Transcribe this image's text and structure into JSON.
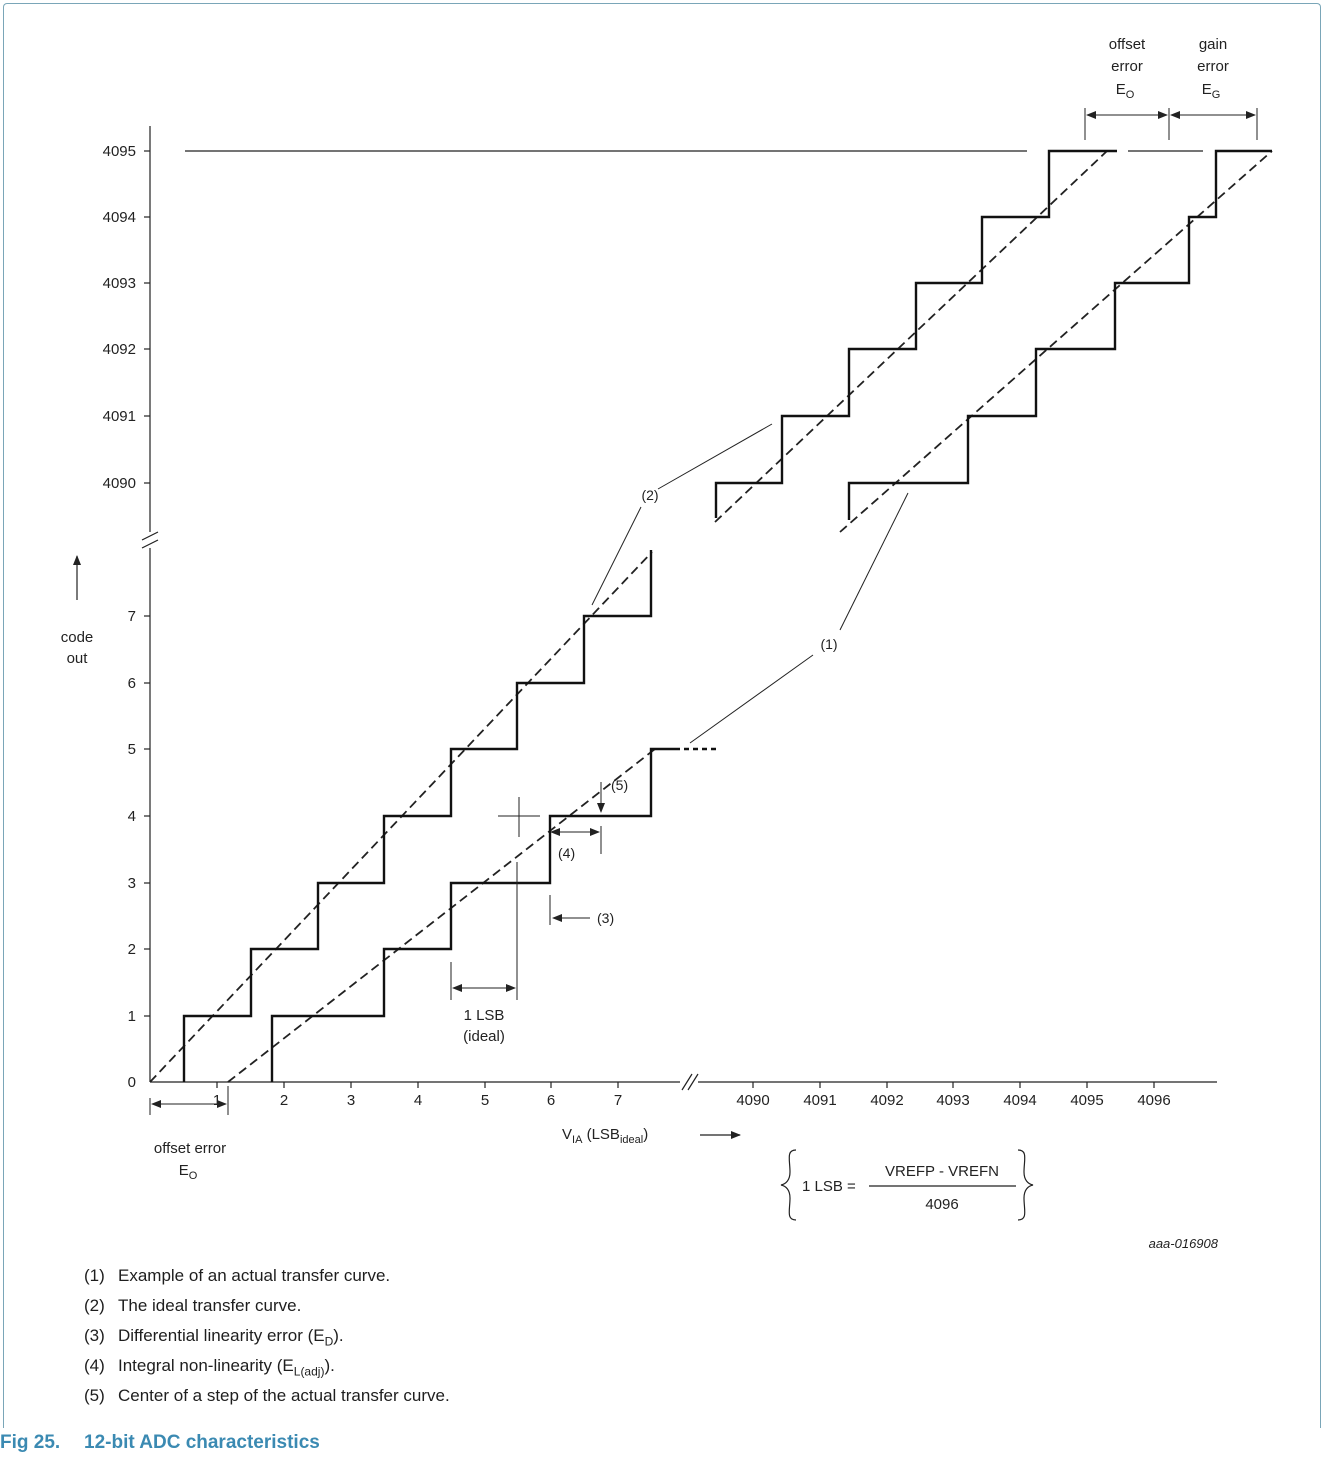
{
  "axes": {
    "y_ticks": [
      "0",
      "1",
      "2",
      "3",
      "4",
      "5",
      "6",
      "7",
      "4090",
      "4091",
      "4092",
      "4093",
      "4094",
      "4095"
    ],
    "x_ticks": [
      "1",
      "2",
      "3",
      "4",
      "5",
      "6",
      "7",
      "4090",
      "4091",
      "4092",
      "4093",
      "4094",
      "4095",
      "4096"
    ],
    "y_label_line1": "code",
    "y_label_line2": "out",
    "x_label_main": "V",
    "x_label_sub1": "IA",
    "x_label_mid": " (LSB",
    "x_label_sub2": "ideal",
    "x_label_end": ")"
  },
  "annotations": {
    "offset_top_1": "offset",
    "offset_top_2": "error",
    "offset_top_3": "E",
    "offset_top_3_sub": "O",
    "gain_top_1": "gain",
    "gain_top_2": "error",
    "gain_top_3": "E",
    "gain_top_3_sub": "G",
    "offset_bottom_1": "offset error",
    "offset_bottom_2": "E",
    "offset_bottom_2_sub": "O",
    "lsb_1": "1 LSB",
    "lsb_2": "(ideal)",
    "label_1": "(1)",
    "label_2": "(2)",
    "label_3": "(3)",
    "label_4": "(4)",
    "label_5": "(5)",
    "formula_left": "1 LSB =",
    "formula_num": "VREFP - VREFN",
    "formula_den": "4096",
    "code_id": "aaa-016908"
  },
  "notes": [
    {
      "num": "(1)",
      "text": "Example of an actual transfer curve.",
      "sub": "",
      "tail": ""
    },
    {
      "num": "(2)",
      "text": "The ideal transfer curve.",
      "sub": "",
      "tail": ""
    },
    {
      "num": "(3)",
      "text": "Differential linearity error (E",
      "sub": "D",
      "tail": ")."
    },
    {
      "num": "(4)",
      "text": "Integral non-linearity (E",
      "sub": "L(adj)",
      "tail": ")."
    },
    {
      "num": "(5)",
      "text": "Center of a step of the actual transfer curve.",
      "sub": "",
      "tail": ""
    }
  ],
  "caption": {
    "number": "Fig 25.",
    "title": "12-bit ADC characteristics"
  }
}
